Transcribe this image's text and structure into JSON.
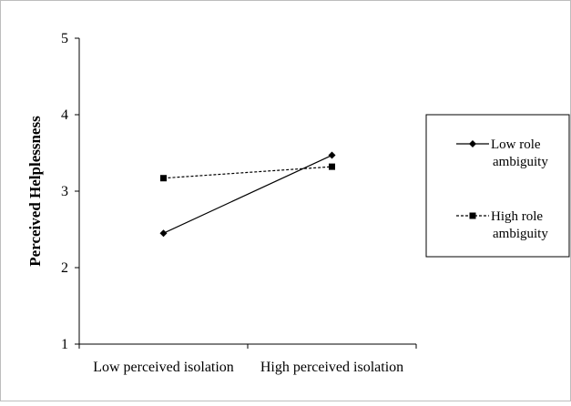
{
  "chart_data": {
    "type": "line",
    "title": "",
    "xlabel": "",
    "ylabel": "Perceived Helplessness",
    "categories": [
      "Low perceived isolation",
      "High perceived isolation"
    ],
    "ylim": [
      1,
      5
    ],
    "yticks": [
      "1",
      "2",
      "3",
      "4",
      "5"
    ],
    "grid": false,
    "legend_position": "right",
    "series": [
      {
        "name_lines": [
          "Low role",
          "ambiguity"
        ],
        "values": [
          2.45,
          3.47
        ],
        "marker": "diamond",
        "line_style": "solid"
      },
      {
        "name_lines": [
          "High role",
          "ambiguity"
        ],
        "values": [
          3.17,
          3.32
        ],
        "marker": "square",
        "line_style": "dashed"
      }
    ]
  }
}
